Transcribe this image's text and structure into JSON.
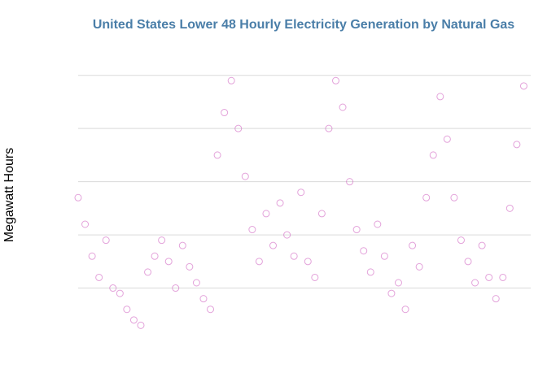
{
  "chart_data": {
    "type": "scatter",
    "title": "United States Lower 48 Hourly Electricity Generation by Natural Gas",
    "xlabel": "",
    "ylabel": "Megawatt Hours",
    "x_tick_labels": [],
    "y_tick_labels": [],
    "y_gridlines": [
      1,
      2,
      3,
      4,
      5
    ],
    "grid": true,
    "legend": "none",
    "colors": {
      "title": "#4a7ea8",
      "points": "#cc55bb",
      "gridline": "#d9d9d9"
    },
    "series": [
      {
        "points": [
          [
            0.0,
            2.7
          ],
          [
            0.2,
            2.2
          ],
          [
            0.4,
            1.6
          ],
          [
            0.6,
            1.2
          ],
          [
            0.8,
            1.9
          ],
          [
            1.0,
            1.0
          ],
          [
            1.2,
            0.9
          ],
          [
            1.4,
            0.6
          ],
          [
            1.6,
            0.4
          ],
          [
            1.8,
            0.3
          ],
          [
            2.0,
            1.3
          ],
          [
            2.2,
            1.6
          ],
          [
            2.4,
            1.9
          ],
          [
            2.6,
            1.5
          ],
          [
            2.8,
            1.0
          ],
          [
            3.0,
            1.8
          ],
          [
            3.2,
            1.4
          ],
          [
            3.4,
            1.1
          ],
          [
            3.6,
            0.8
          ],
          [
            3.8,
            0.6
          ],
          [
            4.0,
            3.5
          ],
          [
            4.2,
            4.3
          ],
          [
            4.4,
            4.9
          ],
          [
            4.6,
            4.0
          ],
          [
            4.8,
            3.1
          ],
          [
            5.0,
            2.1
          ],
          [
            5.2,
            1.5
          ],
          [
            5.4,
            2.4
          ],
          [
            5.6,
            1.8
          ],
          [
            5.8,
            2.6
          ],
          [
            6.0,
            2.0
          ],
          [
            6.2,
            1.6
          ],
          [
            6.4,
            2.8
          ],
          [
            6.6,
            1.5
          ],
          [
            6.8,
            1.2
          ],
          [
            7.0,
            2.4
          ],
          [
            7.2,
            4.0
          ],
          [
            7.4,
            4.9
          ],
          [
            7.6,
            4.4
          ],
          [
            7.8,
            3.0
          ],
          [
            8.0,
            2.1
          ],
          [
            8.2,
            1.7
          ],
          [
            8.4,
            1.3
          ],
          [
            8.6,
            2.2
          ],
          [
            8.8,
            1.6
          ],
          [
            9.0,
            0.9
          ],
          [
            9.2,
            1.1
          ],
          [
            9.4,
            0.6
          ],
          [
            9.6,
            1.8
          ],
          [
            9.8,
            1.4
          ],
          [
            10.0,
            2.7
          ],
          [
            10.2,
            3.5
          ],
          [
            10.4,
            4.6
          ],
          [
            10.6,
            3.8
          ],
          [
            10.8,
            2.7
          ],
          [
            11.0,
            1.9
          ],
          [
            11.2,
            1.5
          ],
          [
            11.4,
            1.1
          ],
          [
            11.6,
            1.8
          ],
          [
            11.8,
            1.2
          ],
          [
            12.0,
            0.8
          ],
          [
            12.2,
            1.2
          ],
          [
            12.4,
            2.5
          ],
          [
            12.6,
            3.7
          ],
          [
            12.8,
            4.8
          ]
        ]
      }
    ],
    "ylim": [
      0,
      5.5
    ],
    "xlim": [
      0,
      13
    ]
  }
}
